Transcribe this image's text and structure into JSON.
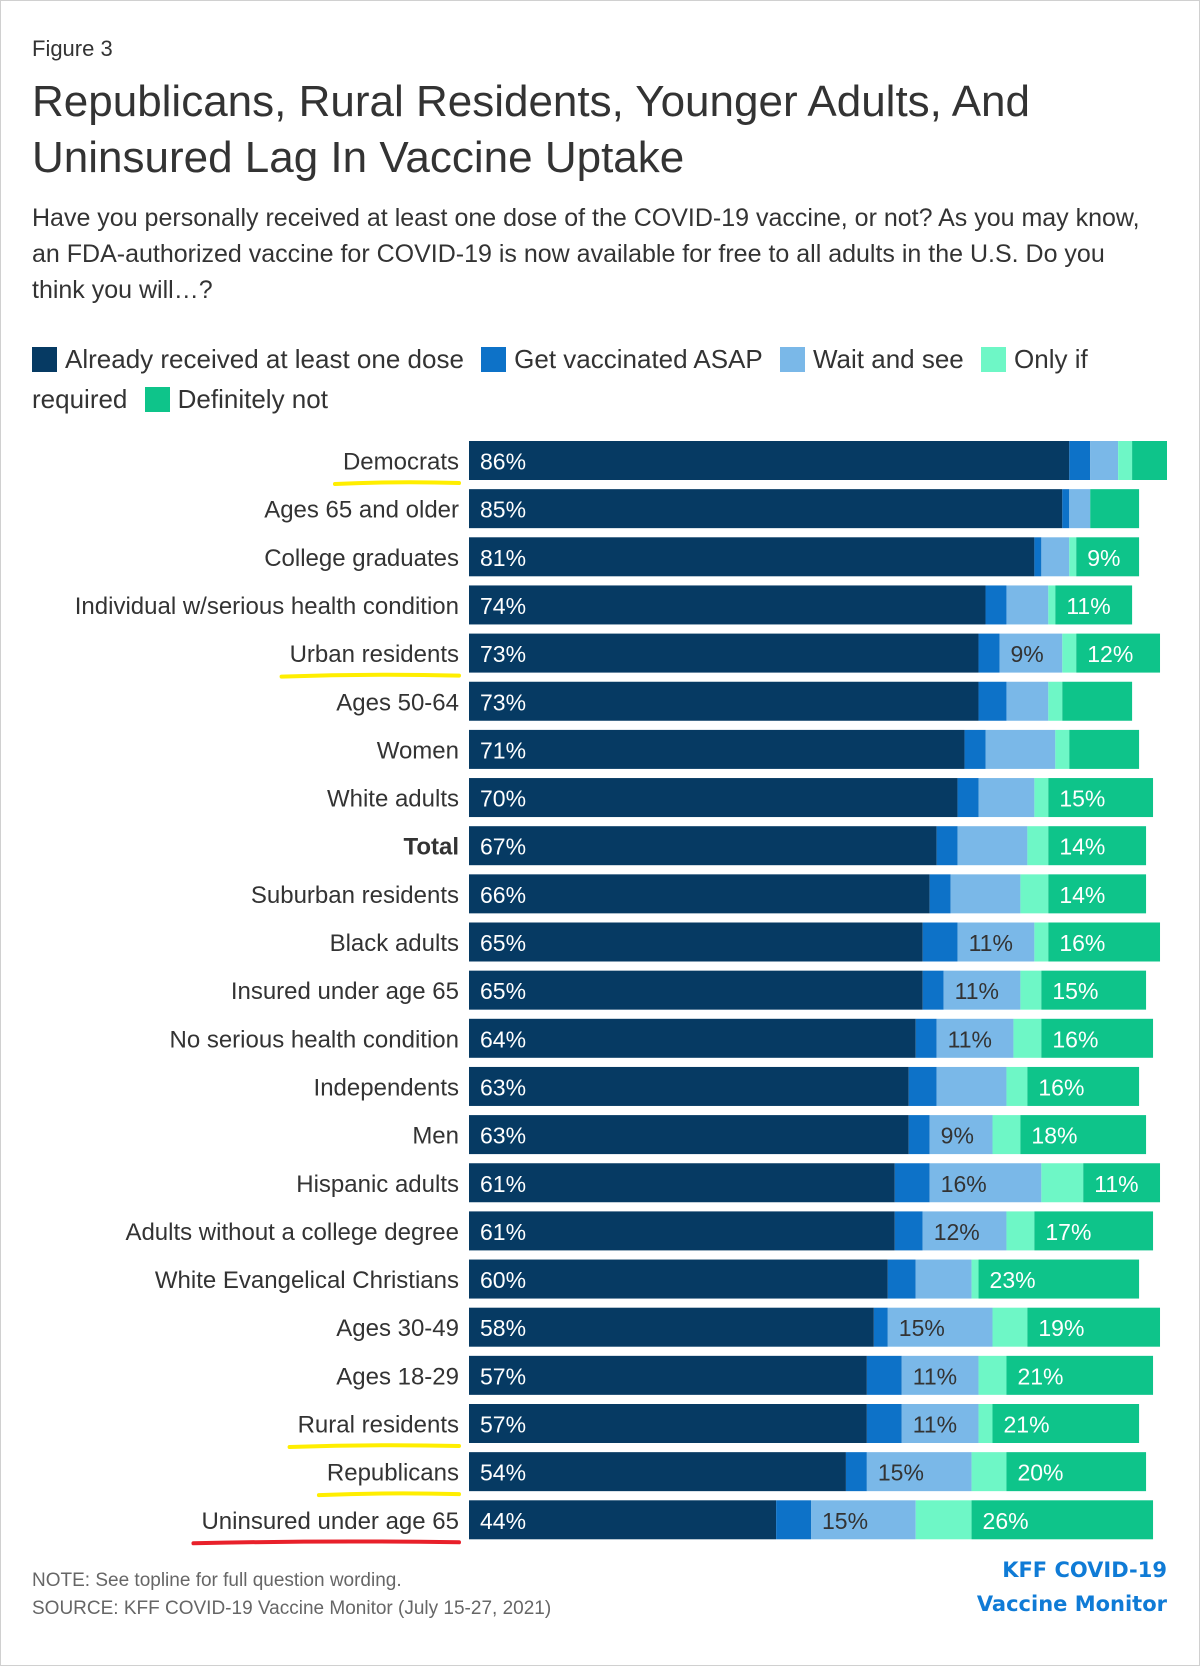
{
  "figure_label": "Figure 3",
  "title": "Republicans, Rural Residents, Younger Adults, And Uninsured Lag In Vaccine Uptake",
  "subtitle": "Have you personally received at least one dose of the COVID-19 vaccine, or not? As you may know, an FDA-authorized vaccine for COVID-19 is now available for free to all adults in the U.S. Do you think you will…?",
  "colors": {
    "already": "#063a63",
    "asap": "#0d72c8",
    "wait": "#7ab8e8",
    "required": "#6ef7c6",
    "definitely_not": "#0ec48a",
    "underline_yellow": "#ffee00",
    "underline_red": "#e8202a"
  },
  "chart_data": {
    "type": "bar",
    "orientation": "horizontal",
    "stacked": true,
    "xlim": [
      0,
      100
    ],
    "legend_position": "top",
    "series_keys": [
      "already",
      "asap",
      "wait",
      "required",
      "definitely_not"
    ],
    "series": [
      {
        "name": "Already received at least one dose",
        "key": "already"
      },
      {
        "name": "Get vaccinated ASAP",
        "key": "asap"
      },
      {
        "name": "Wait and see",
        "key": "wait"
      },
      {
        "name": "Only if required",
        "key": "required"
      },
      {
        "name": "Definitely not",
        "key": "definitely_not"
      }
    ],
    "rows": [
      {
        "label": "Democrats",
        "bold": false,
        "underline": "yellow",
        "values": [
          86,
          3,
          4,
          2,
          5
        ],
        "labels": [
          "86%",
          "",
          "",
          "",
          ""
        ]
      },
      {
        "label": "Ages 65 and older",
        "bold": false,
        "underline": null,
        "values": [
          85,
          1,
          3,
          0,
          7
        ],
        "labels": [
          "85%",
          "",
          "",
          "",
          ""
        ]
      },
      {
        "label": "College graduates",
        "bold": false,
        "underline": null,
        "values": [
          81,
          1,
          4,
          1,
          9
        ],
        "labels": [
          "81%",
          "",
          "",
          "",
          "9%"
        ]
      },
      {
        "label": "Individual w/serious health condition",
        "bold": false,
        "underline": null,
        "values": [
          74,
          3,
          6,
          1,
          11
        ],
        "labels": [
          "74%",
          "",
          "",
          "",
          "11%"
        ]
      },
      {
        "label": "Urban residents",
        "bold": false,
        "underline": "yellow",
        "values": [
          73,
          3,
          9,
          2,
          12
        ],
        "labels": [
          "73%",
          "",
          "9%",
          "",
          "12%"
        ]
      },
      {
        "label": "Ages 50-64",
        "bold": false,
        "underline": null,
        "values": [
          73,
          4,
          6,
          2,
          10
        ],
        "labels": [
          "73%",
          "",
          "",
          "",
          ""
        ]
      },
      {
        "label": "Women",
        "bold": false,
        "underline": null,
        "values": [
          71,
          3,
          10,
          2,
          10
        ],
        "labels": [
          "71%",
          "",
          "",
          "",
          ""
        ]
      },
      {
        "label": "White adults",
        "bold": false,
        "underline": null,
        "values": [
          70,
          3,
          8,
          2,
          15
        ],
        "labels": [
          "70%",
          "",
          "",
          "",
          "15%"
        ]
      },
      {
        "label": "Total",
        "bold": true,
        "underline": null,
        "values": [
          67,
          3,
          10,
          3,
          14
        ],
        "labels": [
          "67%",
          "",
          "",
          "",
          "14%"
        ]
      },
      {
        "label": "Suburban residents",
        "bold": false,
        "underline": null,
        "values": [
          66,
          3,
          10,
          4,
          14
        ],
        "labels": [
          "66%",
          "",
          "",
          "",
          "14%"
        ]
      },
      {
        "label": "Black adults",
        "bold": false,
        "underline": null,
        "values": [
          65,
          5,
          11,
          2,
          16
        ],
        "labels": [
          "65%",
          "",
          "11%",
          "",
          "16%"
        ]
      },
      {
        "label": "Insured under age 65",
        "bold": false,
        "underline": null,
        "values": [
          65,
          3,
          11,
          3,
          15
        ],
        "labels": [
          "65%",
          "",
          "11%",
          "",
          "15%"
        ]
      },
      {
        "label": "No serious health condition",
        "bold": false,
        "underline": null,
        "values": [
          64,
          3,
          11,
          4,
          16
        ],
        "labels": [
          "64%",
          "",
          "11%",
          "",
          "16%"
        ]
      },
      {
        "label": "Independents",
        "bold": false,
        "underline": null,
        "values": [
          63,
          4,
          10,
          3,
          16
        ],
        "labels": [
          "63%",
          "",
          "",
          "",
          "16%"
        ]
      },
      {
        "label": "Men",
        "bold": false,
        "underline": null,
        "values": [
          63,
          3,
          9,
          4,
          18
        ],
        "labels": [
          "63%",
          "",
          "9%",
          "",
          "18%"
        ]
      },
      {
        "label": "Hispanic adults",
        "bold": false,
        "underline": null,
        "values": [
          61,
          5,
          16,
          6,
          11
        ],
        "labels": [
          "61%",
          "",
          "16%",
          "",
          "11%"
        ]
      },
      {
        "label": "Adults without a college degree",
        "bold": false,
        "underline": null,
        "values": [
          61,
          4,
          12,
          4,
          17
        ],
        "labels": [
          "61%",
          "",
          "12%",
          "",
          "17%"
        ]
      },
      {
        "label": "White Evangelical Christians",
        "bold": false,
        "underline": null,
        "values": [
          60,
          4,
          8,
          1,
          23
        ],
        "labels": [
          "60%",
          "",
          "",
          "",
          "23%"
        ]
      },
      {
        "label": "Ages 30-49",
        "bold": false,
        "underline": null,
        "values": [
          58,
          2,
          15,
          5,
          19
        ],
        "labels": [
          "58%",
          "",
          "15%",
          "",
          "19%"
        ]
      },
      {
        "label": "Ages 18-29",
        "bold": false,
        "underline": null,
        "values": [
          57,
          5,
          11,
          4,
          21
        ],
        "labels": [
          "57%",
          "",
          "11%",
          "",
          "21%"
        ]
      },
      {
        "label": "Rural residents",
        "bold": false,
        "underline": "yellow",
        "values": [
          57,
          5,
          11,
          2,
          21
        ],
        "labels": [
          "57%",
          "",
          "11%",
          "",
          "21%"
        ]
      },
      {
        "label": "Republicans",
        "bold": false,
        "underline": "yellow",
        "values": [
          54,
          3,
          15,
          5,
          20
        ],
        "labels": [
          "54%",
          "",
          "15%",
          "",
          "20%"
        ]
      },
      {
        "label": "Uninsured under age 65",
        "bold": false,
        "underline": "red",
        "values": [
          44,
          5,
          15,
          8,
          26
        ],
        "labels": [
          "44%",
          "",
          "15%",
          "",
          "26%"
        ]
      }
    ]
  },
  "footer": {
    "note": "NOTE: See topline for full question wording.",
    "source": "SOURCE: KFF COVID-19 Vaccine Monitor (July 15-27, 2021)",
    "brand_line1": "KFF COVID-19",
    "brand_line2": "Vaccine Monitor"
  }
}
